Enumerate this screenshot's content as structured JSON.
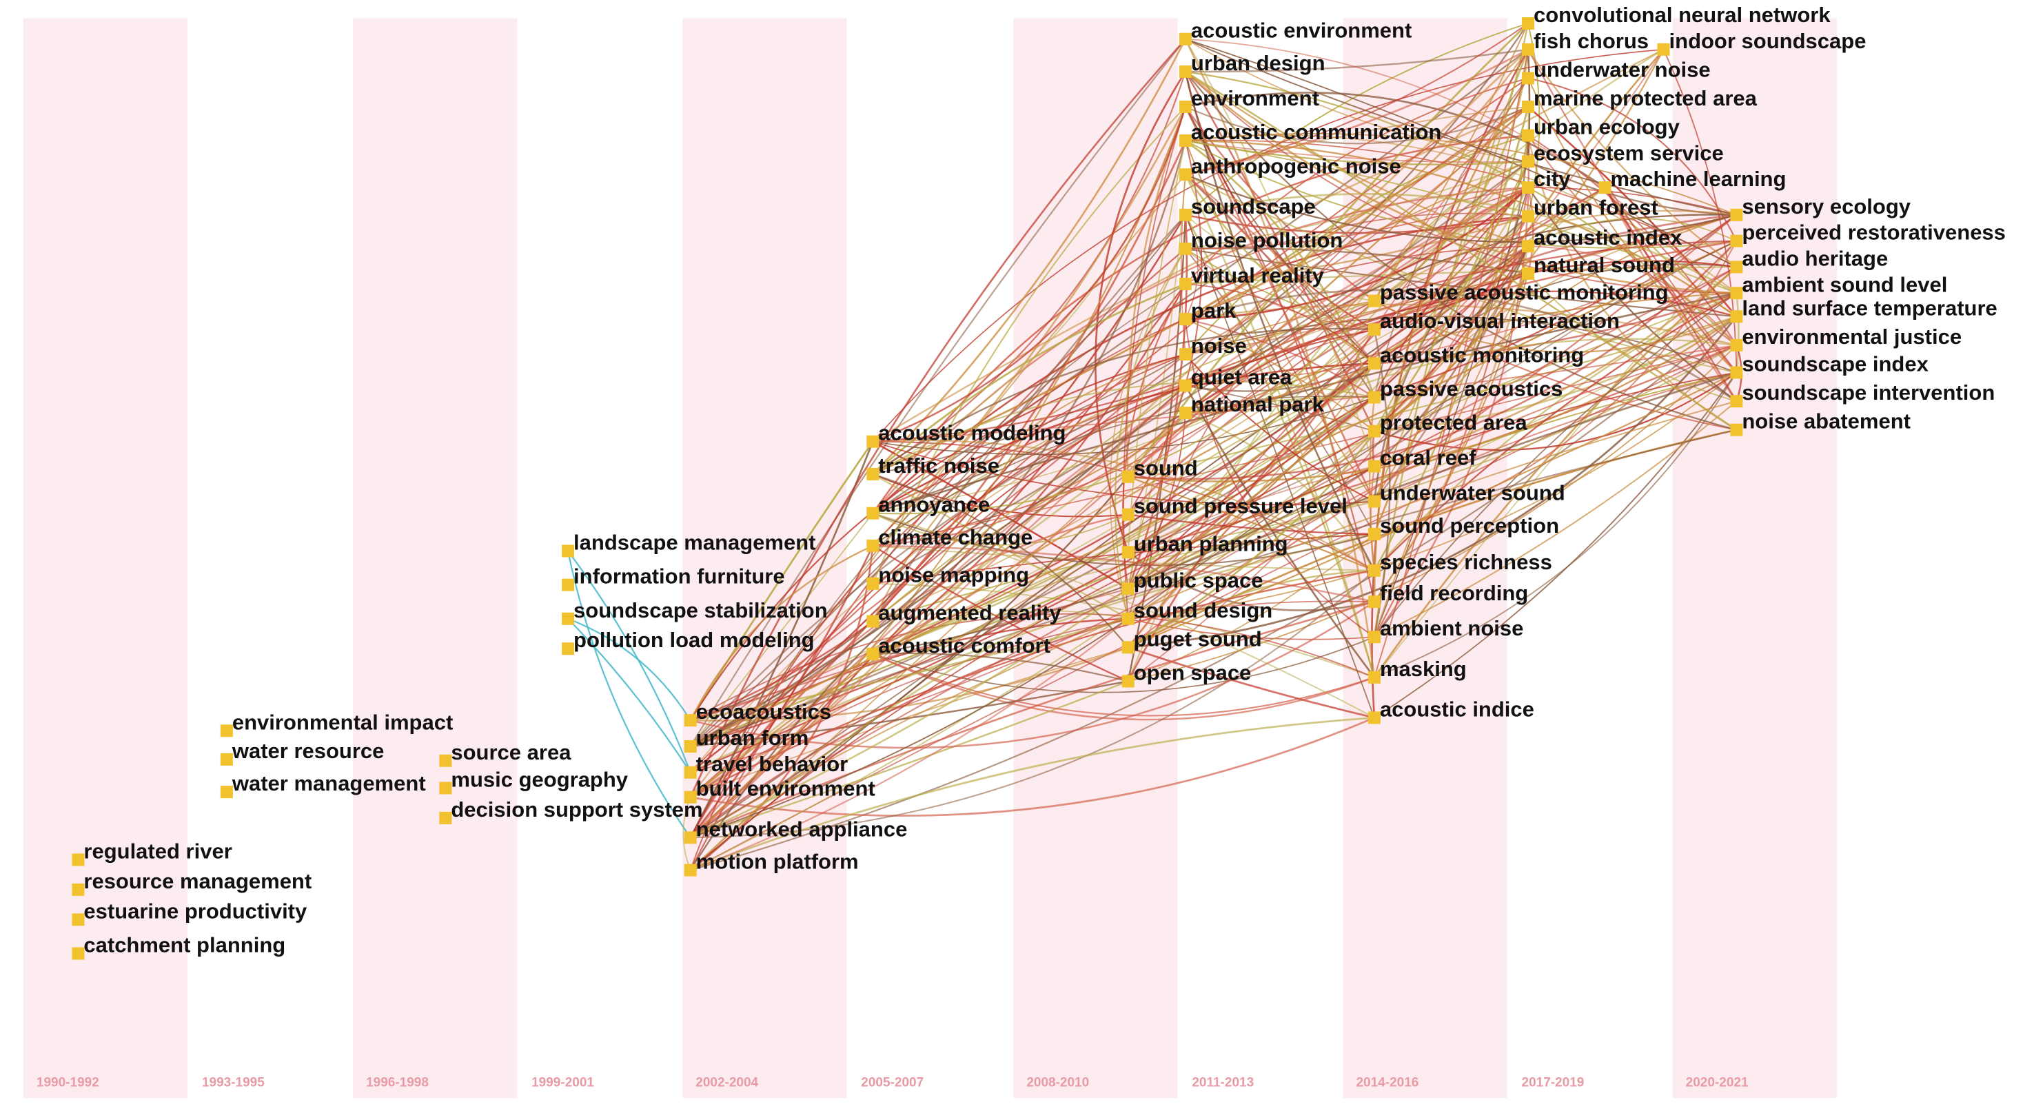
{
  "stripe_color": "#fdecef",
  "node_color": "#f2c12e",
  "link_colors": [
    "#c0392b",
    "#d35f4a",
    "#c98a3a",
    "#b9a944",
    "#8a5a3c",
    "#3fb6c9"
  ],
  "periods": [
    "1990-1992",
    "1993-1995",
    "1996-1998",
    "1999-2001",
    "2002-2004",
    "2005-2007",
    "2008-2010",
    "2011-2013",
    "2014-2016",
    "2017-2019",
    "2020-2021"
  ],
  "keywords": [
    {
      "label": "regulated river",
      "period": "1990-1992"
    },
    {
      "label": "resource management",
      "period": "1990-1992"
    },
    {
      "label": "estuarine productivity",
      "period": "1990-1992"
    },
    {
      "label": "catchment planning",
      "period": "1990-1992"
    },
    {
      "label": "environmental impact",
      "period": "1993-1995"
    },
    {
      "label": "water resource",
      "period": "1993-1995"
    },
    {
      "label": "water management",
      "period": "1993-1995"
    },
    {
      "label": "source area",
      "period": "1996-1998"
    },
    {
      "label": "music geography",
      "period": "1996-1998"
    },
    {
      "label": "decision support system",
      "period": "1996-1998"
    },
    {
      "label": "landscape management",
      "period": "1999-2001"
    },
    {
      "label": "information furniture",
      "period": "1999-2001"
    },
    {
      "label": "soundscape stabilization",
      "period": "1999-2001"
    },
    {
      "label": "pollution load modeling",
      "period": "1999-2001"
    },
    {
      "label": "ecoacoustics",
      "period": "2002-2004"
    },
    {
      "label": "urban form",
      "period": "2002-2004"
    },
    {
      "label": "travel behavior",
      "period": "2002-2004"
    },
    {
      "label": "built environment",
      "period": "2002-2004"
    },
    {
      "label": "networked appliance",
      "period": "2002-2004"
    },
    {
      "label": "motion platform",
      "period": "2002-2004"
    },
    {
      "label": "acoustic modeling",
      "period": "2005-2007"
    },
    {
      "label": "traffic noise",
      "period": "2005-2007"
    },
    {
      "label": "annoyance",
      "period": "2005-2007"
    },
    {
      "label": "climate change",
      "period": "2005-2007"
    },
    {
      "label": "noise mapping",
      "period": "2005-2007"
    },
    {
      "label": "augmented reality",
      "period": "2005-2007"
    },
    {
      "label": "acoustic comfort",
      "period": "2005-2007"
    },
    {
      "label": "sound",
      "period": "2008-2010"
    },
    {
      "label": "sound pressure level",
      "period": "2008-2010"
    },
    {
      "label": "urban planning",
      "period": "2008-2010"
    },
    {
      "label": "public space",
      "period": "2008-2010"
    },
    {
      "label": "sound design",
      "period": "2008-2010"
    },
    {
      "label": "puget sound",
      "period": "2008-2010"
    },
    {
      "label": "open space",
      "period": "2008-2010"
    },
    {
      "label": "acoustic environment",
      "period": "2011-2013"
    },
    {
      "label": "urban design",
      "period": "2011-2013"
    },
    {
      "label": "environment",
      "period": "2011-2013"
    },
    {
      "label": "acoustic communication",
      "period": "2011-2013"
    },
    {
      "label": "anthropogenic noise",
      "period": "2011-2013"
    },
    {
      "label": "soundscape",
      "period": "2011-2013"
    },
    {
      "label": "noise pollution",
      "period": "2011-2013"
    },
    {
      "label": "virtual reality",
      "period": "2011-2013"
    },
    {
      "label": "park",
      "period": "2011-2013"
    },
    {
      "label": "noise",
      "period": "2011-2013"
    },
    {
      "label": "quiet area",
      "period": "2011-2013"
    },
    {
      "label": "national park",
      "period": "2011-2013"
    },
    {
      "label": "passive acoustic monitoring",
      "period": "2014-2016"
    },
    {
      "label": "audio-visual interaction",
      "period": "2014-2016"
    },
    {
      "label": "acoustic monitoring",
      "period": "2014-2016"
    },
    {
      "label": "passive acoustics",
      "period": "2014-2016"
    },
    {
      "label": "protected area",
      "period": "2014-2016"
    },
    {
      "label": "coral reef",
      "period": "2014-2016"
    },
    {
      "label": "underwater sound",
      "period": "2014-2016"
    },
    {
      "label": "sound perception",
      "period": "2014-2016"
    },
    {
      "label": "species richness",
      "period": "2014-2016"
    },
    {
      "label": "field recording",
      "period": "2014-2016"
    },
    {
      "label": "ambient noise",
      "period": "2014-2016"
    },
    {
      "label": "masking",
      "period": "2014-2016"
    },
    {
      "label": "acoustic indice",
      "period": "2014-2016"
    },
    {
      "label": "convolutional neural network",
      "period": "2017-2019"
    },
    {
      "label": "fish chorus",
      "period": "2017-2019"
    },
    {
      "label": "underwater noise",
      "period": "2017-2019"
    },
    {
      "label": "marine protected area",
      "period": "2017-2019"
    },
    {
      "label": "urban ecology",
      "period": "2017-2019"
    },
    {
      "label": "ecosystem service",
      "period": "2017-2019"
    },
    {
      "label": "city",
      "period": "2017-2019"
    },
    {
      "label": "urban forest",
      "period": "2017-2019"
    },
    {
      "label": "acoustic index",
      "period": "2017-2019"
    },
    {
      "label": "natural sound",
      "period": "2017-2019"
    },
    {
      "label": "indoor soundscape",
      "period": "2017-2019"
    },
    {
      "label": "machine learning",
      "period": "2017-2019"
    },
    {
      "label": "sensory ecology",
      "period": "2020-2021"
    },
    {
      "label": "perceived restorativeness",
      "period": "2020-2021"
    },
    {
      "label": "audio heritage",
      "period": "2020-2021"
    },
    {
      "label": "ambient sound level",
      "period": "2020-2021"
    },
    {
      "label": "land surface temperature",
      "period": "2020-2021"
    },
    {
      "label": "environmental justice",
      "period": "2020-2021"
    },
    {
      "label": "soundscape index",
      "period": "2020-2021"
    },
    {
      "label": "soundscape intervention",
      "period": "2020-2021"
    },
    {
      "label": "noise abatement",
      "period": "2020-2021"
    }
  ]
}
